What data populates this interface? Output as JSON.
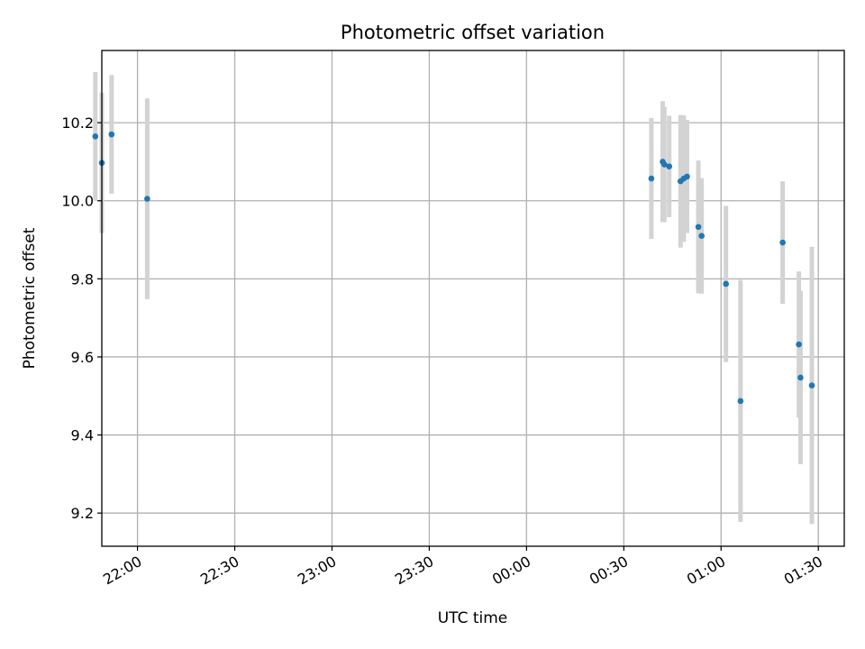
{
  "chart_data": {
    "type": "scatter",
    "title": "Photometric offset variation",
    "xlabel": "UTC time",
    "ylabel": "Photometric offset",
    "x_axis": "time",
    "xlim": [
      "21:49",
      "01:38"
    ],
    "ylim": [
      9.115,
      10.385
    ],
    "x_ticks": [
      "22:00",
      "22:30",
      "23:00",
      "23:30",
      "00:00",
      "00:30",
      "01:00",
      "01:30"
    ],
    "y_ticks": [
      9.2,
      9.4,
      9.6,
      9.8,
      10.0,
      10.2
    ],
    "y_tick_labels": [
      "9.2",
      "9.4",
      "9.6",
      "9.8",
      "10.0",
      "10.2"
    ],
    "grid": true,
    "colors": {
      "marker": "#1f77b4",
      "errorbar": "#d3d3d3",
      "grid": "#b0b0b0"
    },
    "series": [
      {
        "points": [
          {
            "x": "21:47:00",
            "y": 10.165,
            "err": 0.165
          },
          {
            "x": "21:49:00",
            "y": 10.097,
            "err": 0.18
          },
          {
            "x": "21:52:00",
            "y": 10.17,
            "err": 0.152
          },
          {
            "x": "22:03:00",
            "y": 10.005,
            "err": 0.257
          },
          {
            "x": "00:38:30",
            "y": 10.057,
            "err": 0.155
          },
          {
            "x": "00:42:00",
            "y": 10.1,
            "err": 0.155
          },
          {
            "x": "00:42:30",
            "y": 10.093,
            "err": 0.148
          },
          {
            "x": "00:44:00",
            "y": 10.088,
            "err": 0.13
          },
          {
            "x": "00:47:30",
            "y": 10.05,
            "err": 0.17
          },
          {
            "x": "00:48:30",
            "y": 10.057,
            "err": 0.162
          },
          {
            "x": "00:49:30",
            "y": 10.062,
            "err": 0.145
          },
          {
            "x": "00:53:00",
            "y": 9.933,
            "err": 0.17
          },
          {
            "x": "00:54:00",
            "y": 9.91,
            "err": 0.148
          },
          {
            "x": "01:01:30",
            "y": 9.787,
            "err": 0.2
          },
          {
            "x": "01:06:00",
            "y": 9.487,
            "err": 0.31
          },
          {
            "x": "01:19:00",
            "y": 9.893,
            "err": 0.157
          },
          {
            "x": "01:24:00",
            "y": 9.632,
            "err": 0.187
          },
          {
            "x": "01:24:30",
            "y": 9.547,
            "err": 0.222
          },
          {
            "x": "01:28:00",
            "y": 9.527,
            "err": 0.355
          }
        ]
      }
    ]
  }
}
